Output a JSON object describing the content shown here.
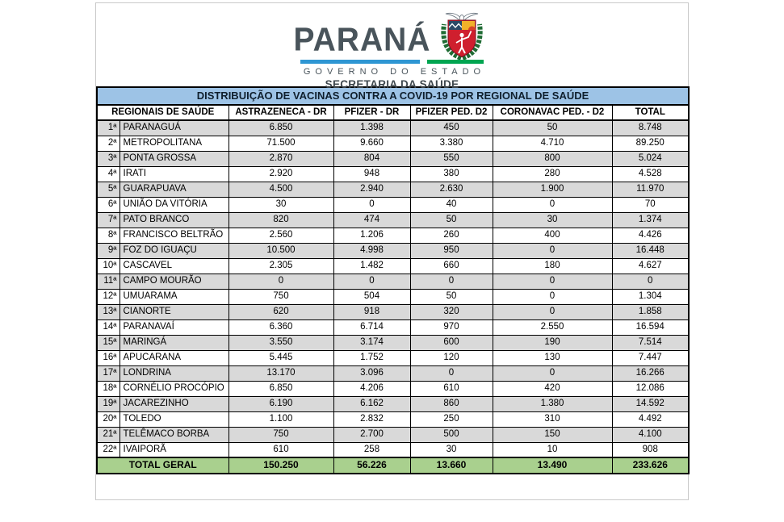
{
  "theme": {
    "slate": "#49545b",
    "blue_bar": "#2e96d3",
    "green_bar": "#00a551",
    "title_bg": "#9dc3e6",
    "total_bg": "#a9d08e",
    "stripe_bg": "#d9d9d9",
    "shield_red": "#cf1f2e",
    "wreath_green": "#1f6b33",
    "sun_yellow": "#f2b229"
  },
  "logo": {
    "wordmark": "PARANÁ",
    "government": "GOVERNO DO ESTADO",
    "secretariat": "SECRETARIA DA SAÚDE"
  },
  "table": {
    "title": "DISTRIBUIÇÃO DE VACINAS CONTRA A COVID-19 POR REGIONAL DE SAÚDE",
    "region_header": "REGIONAIS DE SAÚDE",
    "columns": [
      "ASTRAZENECA - DR",
      "PFIZER - DR",
      "PFIZER PED. D2",
      "CORONAVAC PED. - D2",
      "TOTAL"
    ],
    "rows": [
      {
        "ordinal": "1ª",
        "name": "PARANAGUÁ",
        "values": [
          "6.850",
          "1.398",
          "450",
          "50",
          "8.748"
        ]
      },
      {
        "ordinal": "2ª",
        "name": "METROPOLITANA",
        "values": [
          "71.500",
          "9.660",
          "3.380",
          "4.710",
          "89.250"
        ]
      },
      {
        "ordinal": "3ª",
        "name": "PONTA GROSSA",
        "values": [
          "2.870",
          "804",
          "550",
          "800",
          "5.024"
        ]
      },
      {
        "ordinal": "4ª",
        "name": "IRATI",
        "values": [
          "2.920",
          "948",
          "380",
          "280",
          "4.528"
        ]
      },
      {
        "ordinal": "5ª",
        "name": "GUARAPUAVA",
        "values": [
          "4.500",
          "2.940",
          "2.630",
          "1.900",
          "11.970"
        ]
      },
      {
        "ordinal": "6ª",
        "name": "UNIÃO DA VITÓRIA",
        "values": [
          "30",
          "0",
          "40",
          "0",
          "70"
        ]
      },
      {
        "ordinal": "7ª",
        "name": "PATO BRANCO",
        "values": [
          "820",
          "474",
          "50",
          "30",
          "1.374"
        ]
      },
      {
        "ordinal": "8ª",
        "name": "FRANCISCO BELTRÃO",
        "values": [
          "2.560",
          "1.206",
          "260",
          "400",
          "4.426"
        ]
      },
      {
        "ordinal": "9ª",
        "name": "FOZ DO IGUAÇU",
        "values": [
          "10.500",
          "4.998",
          "950",
          "0",
          "16.448"
        ]
      },
      {
        "ordinal": "10ª",
        "name": "CASCAVEL",
        "values": [
          "2.305",
          "1.482",
          "660",
          "180",
          "4.627"
        ]
      },
      {
        "ordinal": "11ª",
        "name": "CAMPO MOURÃO",
        "values": [
          "0",
          "0",
          "0",
          "0",
          "0"
        ]
      },
      {
        "ordinal": "12ª",
        "name": "UMUARAMA",
        "values": [
          "750",
          "504",
          "50",
          "0",
          "1.304"
        ]
      },
      {
        "ordinal": "13ª",
        "name": "CIANORTE",
        "values": [
          "620",
          "918",
          "320",
          "0",
          "1.858"
        ]
      },
      {
        "ordinal": "14ª",
        "name": "PARANAVAÍ",
        "values": [
          "6.360",
          "6.714",
          "970",
          "2.550",
          "16.594"
        ]
      },
      {
        "ordinal": "15ª",
        "name": "MARINGÁ",
        "values": [
          "3.550",
          "3.174",
          "600",
          "190",
          "7.514"
        ]
      },
      {
        "ordinal": "16ª",
        "name": "APUCARANA",
        "values": [
          "5.445",
          "1.752",
          "120",
          "130",
          "7.447"
        ]
      },
      {
        "ordinal": "17ª",
        "name": "LONDRINA",
        "values": [
          "13.170",
          "3.096",
          "0",
          "0",
          "16.266"
        ]
      },
      {
        "ordinal": "18ª",
        "name": "CORNÉLIO PROCÓPIO",
        "values": [
          "6.850",
          "4.206",
          "610",
          "420",
          "12.086"
        ]
      },
      {
        "ordinal": "19ª",
        "name": "JACAREZINHO",
        "values": [
          "6.190",
          "6.162",
          "860",
          "1.380",
          "14.592"
        ]
      },
      {
        "ordinal": "20ª",
        "name": "TOLEDO",
        "values": [
          "1.100",
          "2.832",
          "250",
          "310",
          "4.492"
        ]
      },
      {
        "ordinal": "21ª",
        "name": "TELÊMACO BORBA",
        "values": [
          "750",
          "2.700",
          "500",
          "150",
          "4.100"
        ]
      },
      {
        "ordinal": "22ª",
        "name": "IVAIPORÃ",
        "values": [
          "610",
          "258",
          "30",
          "10",
          "908"
        ]
      }
    ],
    "total_row": {
      "label": "TOTAL GERAL",
      "values": [
        "150.250",
        "56.226",
        "13.660",
        "13.490",
        "233.626"
      ]
    }
  }
}
